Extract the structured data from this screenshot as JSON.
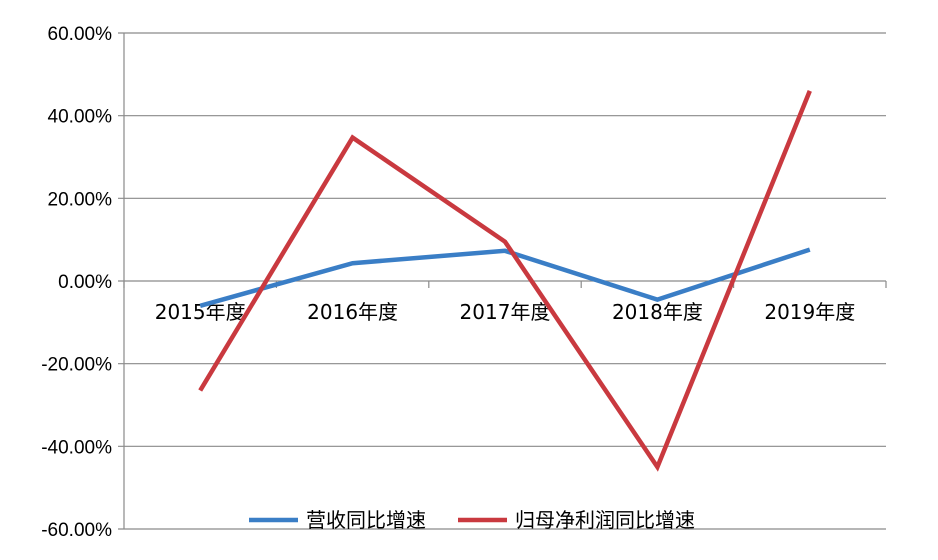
{
  "chart_data": {
    "type": "line",
    "title": "",
    "xlabel": "",
    "ylabel": "",
    "categories": [
      "2015年度",
      "2016年度",
      "2017年度",
      "2018年度",
      "2019年度"
    ],
    "series": [
      {
        "name": "营收同比增速",
        "color": "#3A7EC6",
        "values": [
          -6.0,
          4.3,
          7.3,
          -4.5,
          7.6
        ]
      },
      {
        "name": "归母净利润同比增速",
        "color": "#C9393F",
        "values": [
          -26.5,
          34.7,
          9.5,
          -45.0,
          46.0
        ]
      }
    ],
    "ylim": [
      -60,
      60
    ],
    "yticks": [
      "60.00%",
      "40.00%",
      "20.00%",
      "0.00%",
      "-20.00%",
      "-40.00%",
      "-60.00%"
    ],
    "grid": "horizontal",
    "legend": "bottom"
  }
}
